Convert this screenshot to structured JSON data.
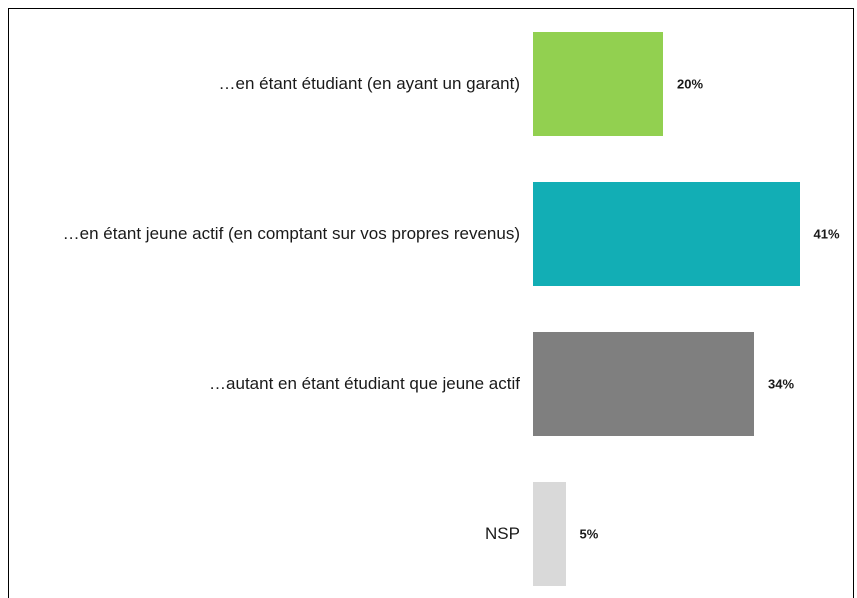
{
  "chart_data": {
    "type": "bar",
    "orientation": "horizontal",
    "categories": [
      "…en étant étudiant (en ayant un garant)",
      "…en étant jeune actif (en comptant sur vos propres revenus)",
      "…autant en étant étudiant que jeune actif",
      "NSP"
    ],
    "values": [
      20,
      41,
      34,
      5
    ],
    "value_labels": [
      "20%",
      "41%",
      "34%",
      "5%"
    ],
    "colors": [
      "#92d050",
      "#12aeb5",
      "#7f7f7f",
      "#d9d9d9"
    ],
    "xlim": [
      0,
      100
    ]
  }
}
